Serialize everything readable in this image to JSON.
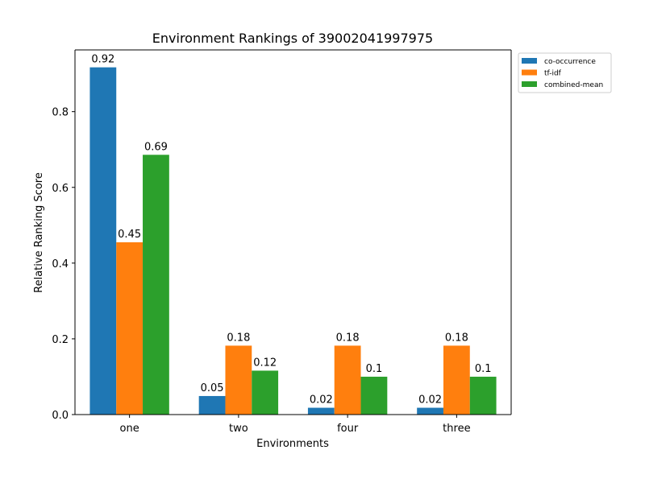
{
  "chart_data": {
    "type": "bar",
    "title": "Environment Rankings of 39002041997975",
    "xlabel": "Environments",
    "ylabel": "Relative Ranking Score",
    "categories": [
      "one",
      "two",
      "four",
      "three"
    ],
    "series": [
      {
        "name": "co-occurrence",
        "color": "#1f77b4",
        "values": [
          0.917,
          0.049,
          0.018,
          0.018
        ],
        "labels": [
          "0.92",
          "0.05",
          "0.02",
          "0.02"
        ]
      },
      {
        "name": "tf-idf",
        "color": "#ff7f0e",
        "values": [
          0.455,
          0.182,
          0.182,
          0.182
        ],
        "labels": [
          "0.45",
          "0.18",
          "0.18",
          "0.18"
        ]
      },
      {
        "name": "combined-mean",
        "color": "#2ca02c",
        "values": [
          0.686,
          0.116,
          0.1,
          0.1
        ],
        "labels": [
          "0.69",
          "0.12",
          "0.1",
          "0.1"
        ]
      }
    ],
    "ylim": [
      0,
      0.963
    ],
    "yticks": [
      0.0,
      0.2,
      0.4,
      0.6,
      0.8
    ],
    "ytick_labels": [
      "0.0",
      "0.2",
      "0.4",
      "0.6",
      "0.8"
    ],
    "grid": false,
    "legend_position": "outside-top-right"
  }
}
